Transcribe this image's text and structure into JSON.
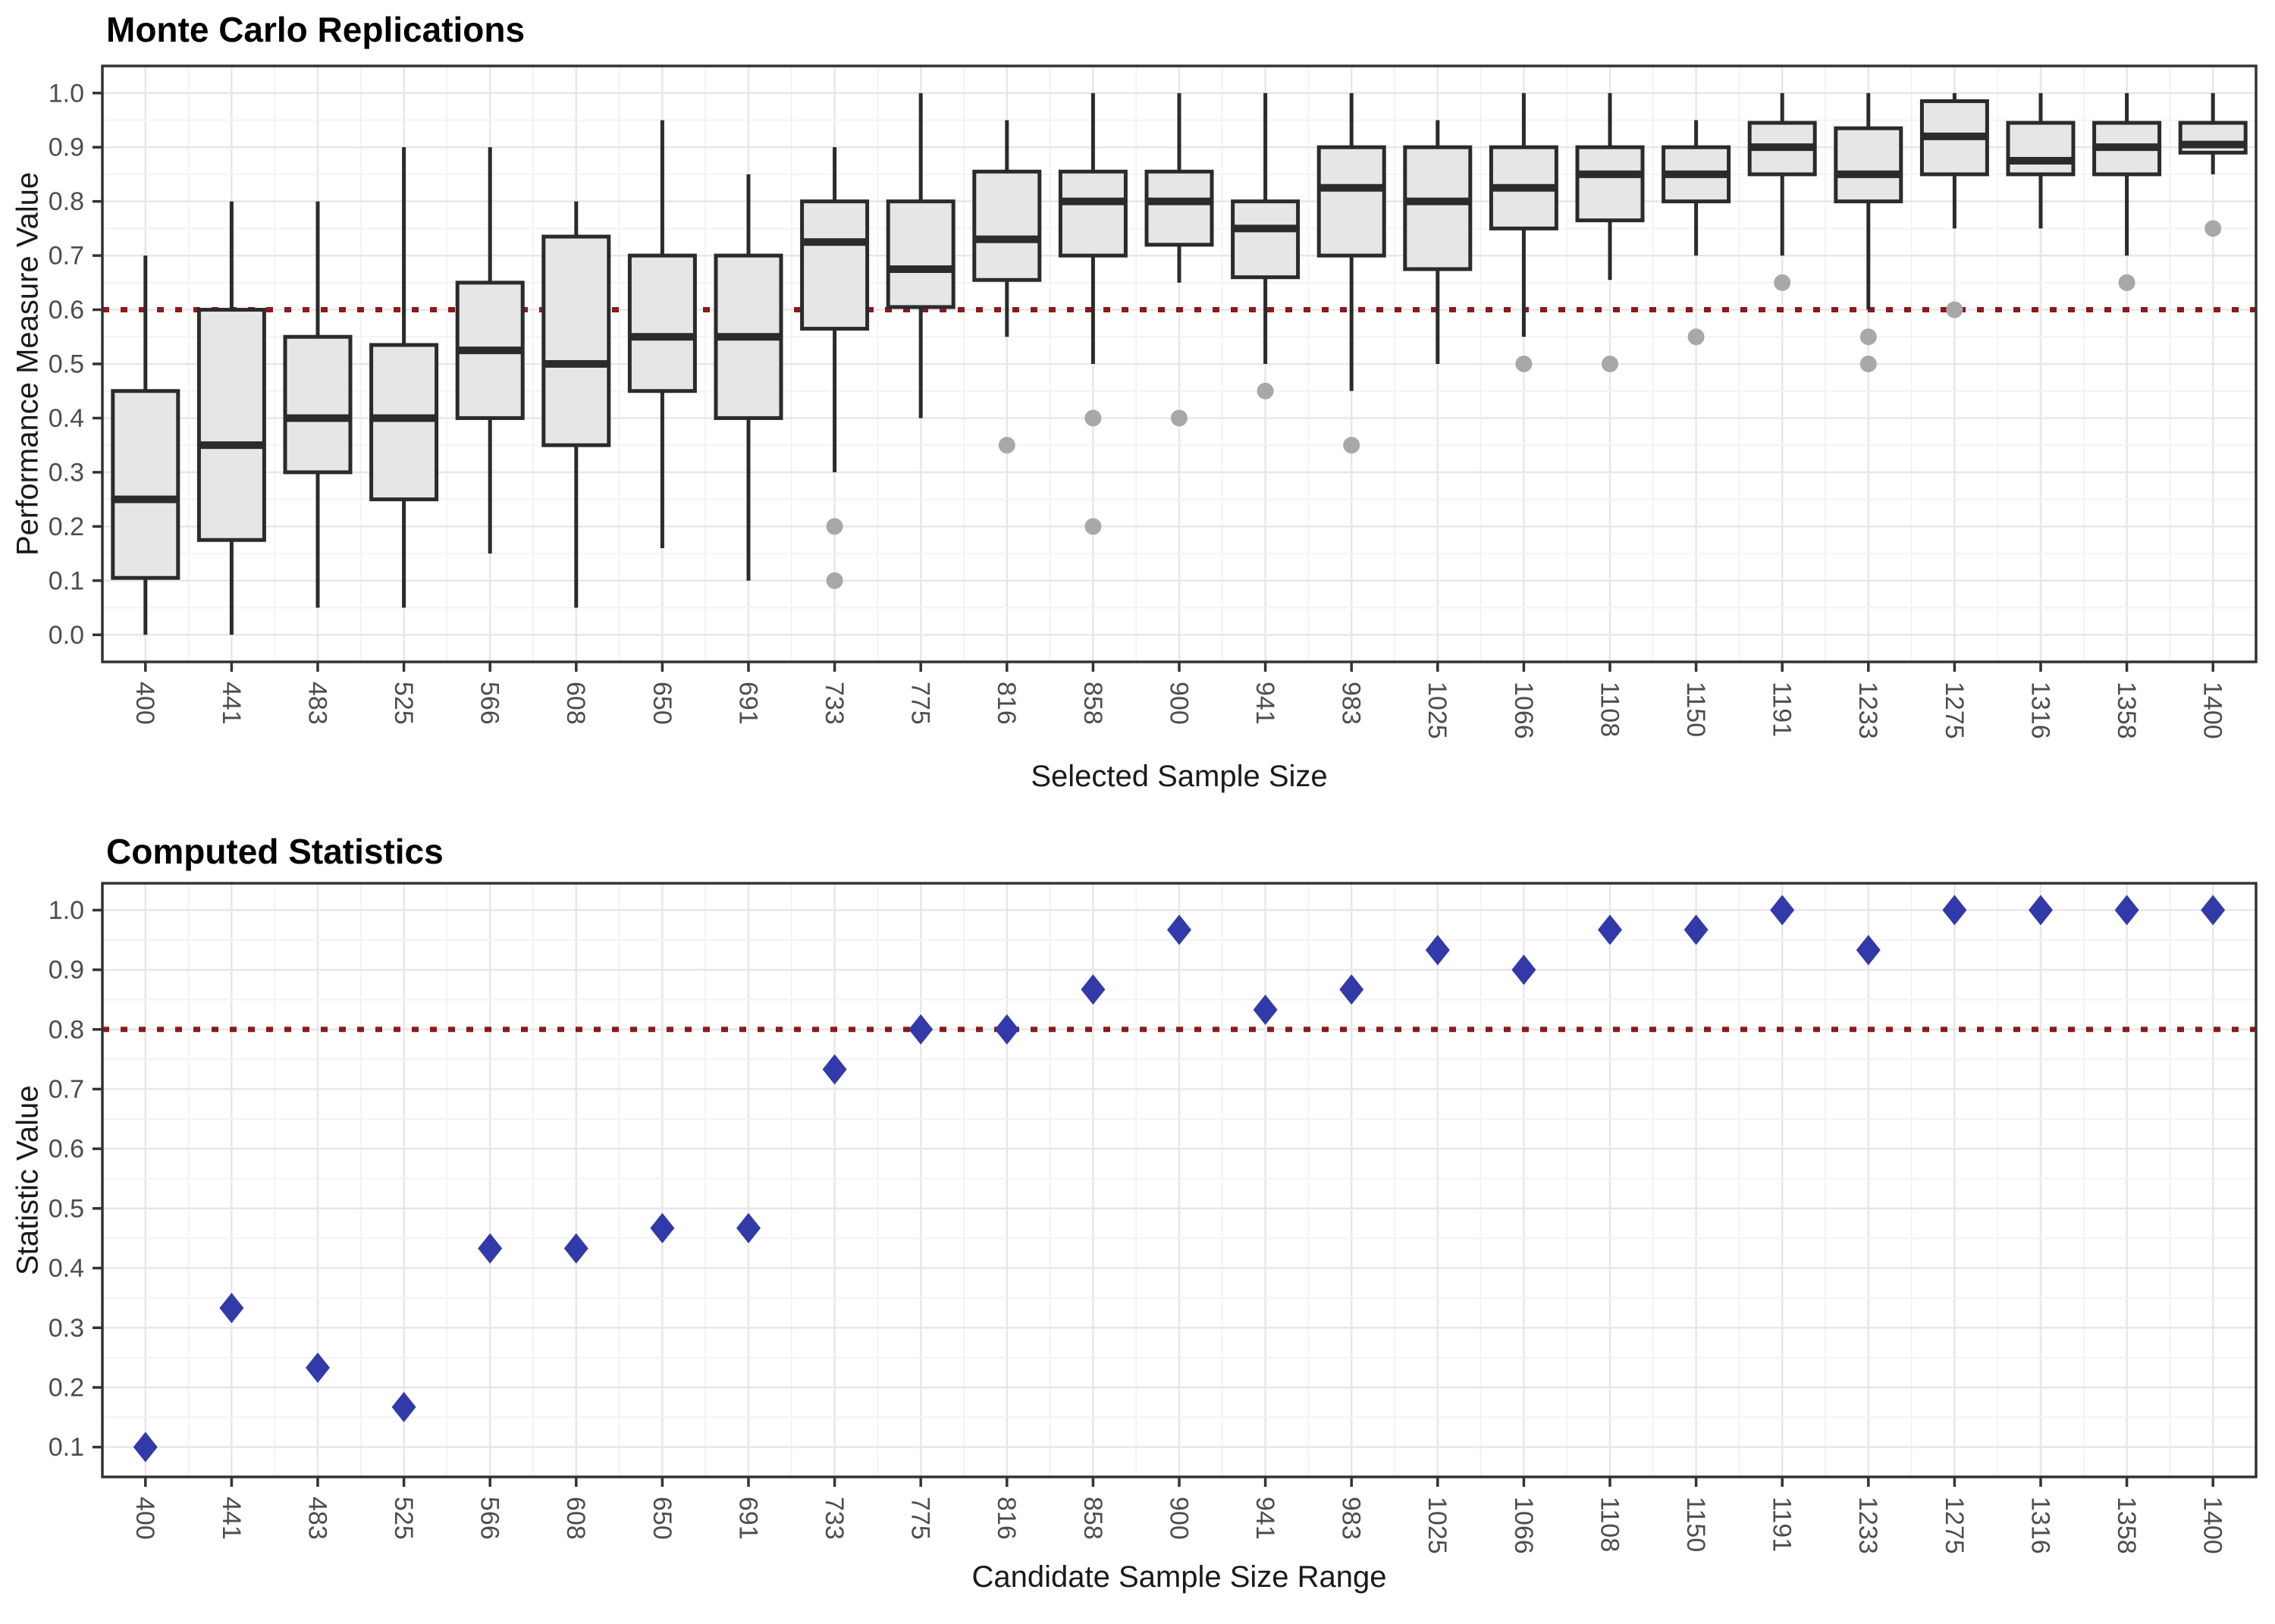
{
  "colors": {
    "background": "#FFFFFF",
    "panel_border": "#333333",
    "grid_major": "#E7E7E7",
    "grid_minor": "#F3F3F3",
    "tick_mark": "#333333",
    "tick_label": "#4D4D4D",
    "box_fill": "#E6E6E6",
    "box_stroke": "#2B2B2B",
    "outlier": "#A8A8A8",
    "reference_line": "#8B1A1A",
    "diamond": "#3239A8"
  },
  "chart_data": [
    {
      "type": "bar",
      "subtype": "boxplot",
      "title": "Monte Carlo Replications",
      "xlabel": "Selected Sample Size",
      "ylabel": "Performance Measure Value",
      "categories": [
        "400",
        "441",
        "483",
        "525",
        "566",
        "608",
        "650",
        "691",
        "733",
        "775",
        "816",
        "858",
        "900",
        "941",
        "983",
        "1025",
        "1066",
        "1108",
        "1150",
        "1191",
        "1233",
        "1275",
        "1316",
        "1358",
        "1400"
      ],
      "ylim": [
        -0.05,
        1.05
      ],
      "yticks": [
        0.0,
        0.1,
        0.2,
        0.3,
        0.4,
        0.5,
        0.6,
        0.7,
        0.8,
        0.9,
        1.0
      ],
      "grid": true,
      "legend": false,
      "reference_line": {
        "y": 0.6,
        "style": "dotted",
        "color": "#8B1A1A"
      },
      "boxes": [
        {
          "category": "400",
          "whisker_low": 0.0,
          "q1": 0.105,
          "median": 0.25,
          "q3": 0.45,
          "whisker_high": 0.7,
          "outliers": []
        },
        {
          "category": "441",
          "whisker_low": 0.0,
          "q1": 0.175,
          "median": 0.35,
          "q3": 0.6,
          "whisker_high": 0.8,
          "outliers": []
        },
        {
          "category": "483",
          "whisker_low": 0.05,
          "q1": 0.3,
          "median": 0.4,
          "q3": 0.55,
          "whisker_high": 0.8,
          "outliers": []
        },
        {
          "category": "525",
          "whisker_low": 0.05,
          "q1": 0.25,
          "median": 0.4,
          "q3": 0.535,
          "whisker_high": 0.9,
          "outliers": []
        },
        {
          "category": "566",
          "whisker_low": 0.15,
          "q1": 0.4,
          "median": 0.525,
          "q3": 0.65,
          "whisker_high": 0.9,
          "outliers": []
        },
        {
          "category": "608",
          "whisker_low": 0.05,
          "q1": 0.35,
          "median": 0.5,
          "q3": 0.735,
          "whisker_high": 0.8,
          "outliers": []
        },
        {
          "category": "650",
          "whisker_low": 0.16,
          "q1": 0.45,
          "median": 0.55,
          "q3": 0.7,
          "whisker_high": 0.95,
          "outliers": []
        },
        {
          "category": "691",
          "whisker_low": 0.1,
          "q1": 0.4,
          "median": 0.55,
          "q3": 0.7,
          "whisker_high": 0.85,
          "outliers": []
        },
        {
          "category": "733",
          "whisker_low": 0.3,
          "q1": 0.565,
          "median": 0.725,
          "q3": 0.8,
          "whisker_high": 0.9,
          "outliers": [
            0.2,
            0.1
          ]
        },
        {
          "category": "775",
          "whisker_low": 0.4,
          "q1": 0.605,
          "median": 0.675,
          "q3": 0.8,
          "whisker_high": 1.0,
          "outliers": []
        },
        {
          "category": "816",
          "whisker_low": 0.55,
          "q1": 0.655,
          "median": 0.73,
          "q3": 0.855,
          "whisker_high": 0.95,
          "outliers": [
            0.35
          ]
        },
        {
          "category": "858",
          "whisker_low": 0.5,
          "q1": 0.7,
          "median": 0.8,
          "q3": 0.855,
          "whisker_high": 1.0,
          "outliers": [
            0.4,
            0.2
          ]
        },
        {
          "category": "900",
          "whisker_low": 0.65,
          "q1": 0.72,
          "median": 0.8,
          "q3": 0.855,
          "whisker_high": 1.0,
          "outliers": [
            0.4
          ]
        },
        {
          "category": "941",
          "whisker_low": 0.5,
          "q1": 0.66,
          "median": 0.75,
          "q3": 0.8,
          "whisker_high": 1.0,
          "outliers": [
            0.45
          ]
        },
        {
          "category": "983",
          "whisker_low": 0.45,
          "q1": 0.7,
          "median": 0.825,
          "q3": 0.9,
          "whisker_high": 1.0,
          "outliers": [
            0.35
          ]
        },
        {
          "category": "1025",
          "whisker_low": 0.5,
          "q1": 0.675,
          "median": 0.8,
          "q3": 0.9,
          "whisker_high": 0.95,
          "outliers": []
        },
        {
          "category": "1066",
          "whisker_low": 0.55,
          "q1": 0.75,
          "median": 0.825,
          "q3": 0.9,
          "whisker_high": 1.0,
          "outliers": [
            0.5
          ]
        },
        {
          "category": "1108",
          "whisker_low": 0.655,
          "q1": 0.765,
          "median": 0.85,
          "q3": 0.9,
          "whisker_high": 1.0,
          "outliers": [
            0.5
          ]
        },
        {
          "category": "1150",
          "whisker_low": 0.7,
          "q1": 0.8,
          "median": 0.85,
          "q3": 0.9,
          "whisker_high": 0.95,
          "outliers": [
            0.55
          ]
        },
        {
          "category": "1191",
          "whisker_low": 0.7,
          "q1": 0.85,
          "median": 0.9,
          "q3": 0.945,
          "whisker_high": 1.0,
          "outliers": [
            0.65
          ]
        },
        {
          "category": "1233",
          "whisker_low": 0.6,
          "q1": 0.8,
          "median": 0.85,
          "q3": 0.935,
          "whisker_high": 1.0,
          "outliers": [
            0.55,
            0.5
          ]
        },
        {
          "category": "1275",
          "whisker_low": 0.75,
          "q1": 0.85,
          "median": 0.92,
          "q3": 0.985,
          "whisker_high": 1.0,
          "outliers": [
            0.6
          ]
        },
        {
          "category": "1316",
          "whisker_low": 0.75,
          "q1": 0.85,
          "median": 0.875,
          "q3": 0.945,
          "whisker_high": 1.0,
          "outliers": []
        },
        {
          "category": "1358",
          "whisker_low": 0.7,
          "q1": 0.85,
          "median": 0.9,
          "q3": 0.945,
          "whisker_high": 1.0,
          "outliers": [
            0.65
          ]
        },
        {
          "category": "1400",
          "whisker_low": 0.85,
          "q1": 0.89,
          "median": 0.905,
          "q3": 0.945,
          "whisker_high": 1.0,
          "outliers": [
            0.75
          ]
        }
      ]
    },
    {
      "type": "scatter",
      "title": "Computed Statistics",
      "xlabel": "Candidate Sample Size Range",
      "ylabel": "Statistic Value",
      "categories": [
        "400",
        "441",
        "483",
        "525",
        "566",
        "608",
        "650",
        "691",
        "733",
        "775",
        "816",
        "858",
        "900",
        "941",
        "983",
        "1025",
        "1066",
        "1108",
        "1150",
        "1191",
        "1233",
        "1275",
        "1316",
        "1358",
        "1400"
      ],
      "values": [
        0.1,
        0.333,
        0.233,
        0.167,
        0.433,
        0.433,
        0.467,
        0.467,
        0.733,
        0.8,
        0.8,
        0.867,
        0.967,
        0.833,
        0.867,
        0.933,
        0.9,
        0.967,
        0.967,
        1.0,
        0.933,
        1.0,
        1.0,
        1.0,
        1.0
      ],
      "marker": "diamond",
      "ylim": [
        0.05,
        1.045
      ],
      "yticks": [
        0.1,
        0.2,
        0.3,
        0.4,
        0.5,
        0.6,
        0.7,
        0.8,
        0.9,
        1.0
      ],
      "grid": true,
      "legend": false,
      "reference_line": {
        "y": 0.8,
        "style": "dotted",
        "color": "#8B1A1A"
      }
    }
  ]
}
